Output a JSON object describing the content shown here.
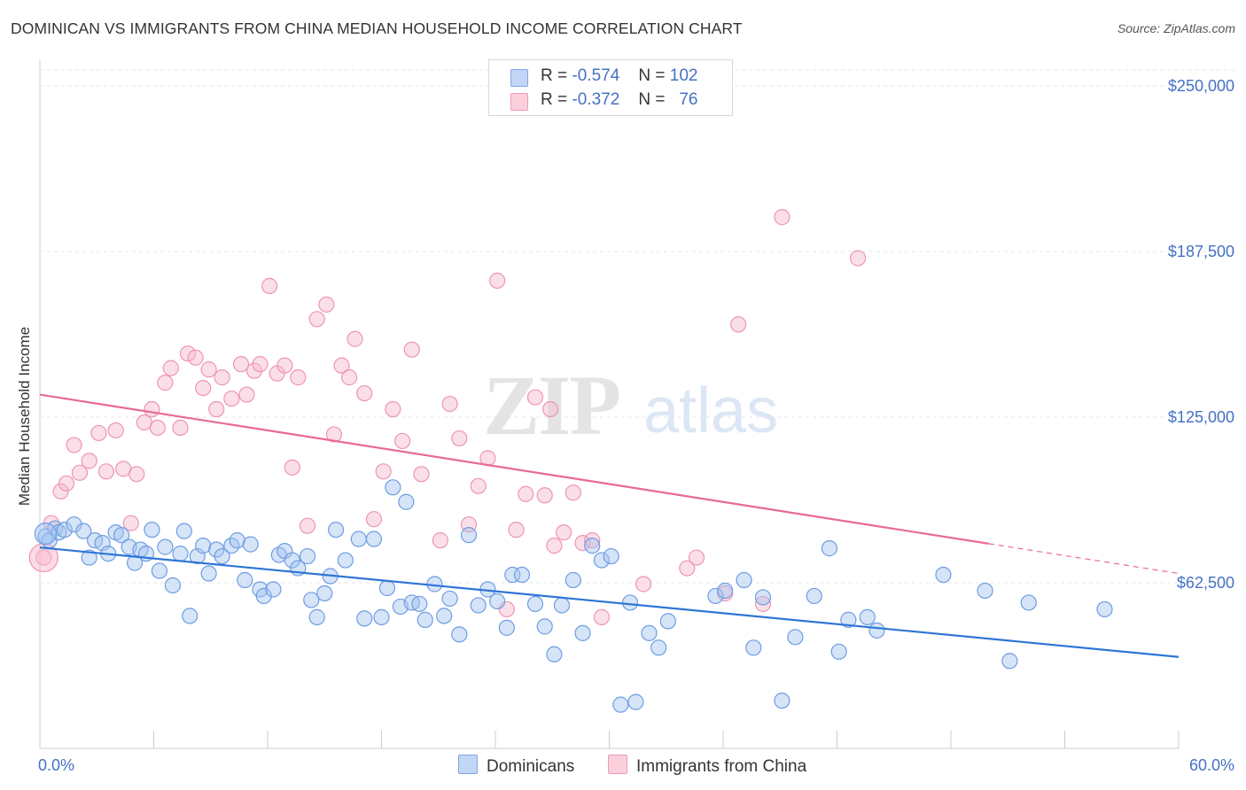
{
  "title": "DOMINICAN VS IMMIGRANTS FROM CHINA MEDIAN HOUSEHOLD INCOME CORRELATION CHART",
  "source": "Source: ZipAtlas.com",
  "watermark": {
    "zip": "ZIP",
    "atlas": "atlas"
  },
  "legend": {
    "r_label": "R =",
    "n_label": "N =",
    "rows": [
      {
        "r": "-0.574",
        "n": "102",
        "color": "#a9c4f0"
      },
      {
        "r": "-0.372",
        "n": "76",
        "color": "#f7b8cb"
      }
    ]
  },
  "bottom_legend": [
    "Dominicans",
    "Immigrants from China"
  ],
  "chart_data": {
    "type": "scatter",
    "title": "DOMINICAN VS IMMIGRANTS FROM CHINA MEDIAN HOUSEHOLD INCOME CORRELATION CHART",
    "xlabel": "",
    "ylabel": "Median Household Income",
    "xlim": [
      0,
      60
    ],
    "ylim": [
      0,
      250000
    ],
    "x_tick_labels": [
      "0.0%",
      "60.0%"
    ],
    "y_ticks": [
      62500,
      125000,
      187500,
      250000
    ],
    "y_tick_labels": [
      "$62,500",
      "$125,000",
      "$187,500",
      "$250,000"
    ],
    "grid": true,
    "legend_position": "top-center",
    "colors": {
      "dominicans": "#4a86e8",
      "china": "#f09ab5",
      "dom_line": "#2e75d6",
      "china_line": "#e8699a",
      "axis_text": "#4472c4"
    },
    "series": [
      {
        "name": "Dominicans",
        "trend": {
          "x0": 0,
          "y0": 75800,
          "x1": 60,
          "y1": 34500,
          "dash_from": 60
        },
        "points": [
          [
            0.3,
            80000
          ],
          [
            0.5,
            78500
          ],
          [
            0.8,
            83000
          ],
          [
            1.0,
            81500
          ],
          [
            1.3,
            82500
          ],
          [
            1.8,
            84500
          ],
          [
            2.3,
            82000
          ],
          [
            2.6,
            72000
          ],
          [
            2.9,
            78500
          ],
          [
            3.3,
            77500
          ],
          [
            3.6,
            73500
          ],
          [
            4.0,
            81500
          ],
          [
            4.3,
            80500
          ],
          [
            4.7,
            76000
          ],
          [
            5.0,
            70000
          ],
          [
            5.3,
            75000
          ],
          [
            5.6,
            73500
          ],
          [
            5.9,
            82500
          ],
          [
            6.3,
            67000
          ],
          [
            6.6,
            76000
          ],
          [
            7.0,
            61500
          ],
          [
            7.4,
            73500
          ],
          [
            7.6,
            82000
          ],
          [
            7.9,
            50000
          ],
          [
            8.3,
            72500
          ],
          [
            8.6,
            76500
          ],
          [
            8.9,
            66000
          ],
          [
            9.3,
            75000
          ],
          [
            9.6,
            72500
          ],
          [
            10.1,
            76500
          ],
          [
            10.4,
            78500
          ],
          [
            10.8,
            63500
          ],
          [
            11.1,
            77000
          ],
          [
            11.6,
            60000
          ],
          [
            11.8,
            57500
          ],
          [
            12.3,
            60000
          ],
          [
            12.6,
            73000
          ],
          [
            12.9,
            74500
          ],
          [
            13.3,
            71000
          ],
          [
            13.6,
            68000
          ],
          [
            14.1,
            72500
          ],
          [
            14.3,
            56000
          ],
          [
            14.6,
            49500
          ],
          [
            15.0,
            58500
          ],
          [
            15.3,
            65000
          ],
          [
            15.6,
            82500
          ],
          [
            16.1,
            71000
          ],
          [
            16.8,
            79000
          ],
          [
            17.1,
            49000
          ],
          [
            17.6,
            79000
          ],
          [
            18.0,
            49500
          ],
          [
            18.3,
            60500
          ],
          [
            18.6,
            98500
          ],
          [
            19.0,
            53500
          ],
          [
            19.3,
            93000
          ],
          [
            19.6,
            55000
          ],
          [
            20.0,
            54500
          ],
          [
            20.3,
            48500
          ],
          [
            20.8,
            62000
          ],
          [
            21.3,
            50000
          ],
          [
            21.6,
            56500
          ],
          [
            22.1,
            43000
          ],
          [
            22.6,
            80500
          ],
          [
            23.1,
            54000
          ],
          [
            23.6,
            60000
          ],
          [
            24.1,
            55500
          ],
          [
            24.6,
            45500
          ],
          [
            24.9,
            65500
          ],
          [
            25.4,
            65500
          ],
          [
            26.1,
            54500
          ],
          [
            26.6,
            46000
          ],
          [
            27.1,
            35500
          ],
          [
            27.5,
            54000
          ],
          [
            28.1,
            63500
          ],
          [
            28.6,
            43500
          ],
          [
            29.1,
            76500
          ],
          [
            29.6,
            71000
          ],
          [
            30.1,
            72500
          ],
          [
            30.6,
            16500
          ],
          [
            31.1,
            55000
          ],
          [
            32.1,
            43500
          ],
          [
            32.6,
            38000
          ],
          [
            33.1,
            48000
          ],
          [
            35.6,
            57500
          ],
          [
            36.1,
            59500
          ],
          [
            37.1,
            63500
          ],
          [
            37.6,
            38000
          ],
          [
            38.1,
            57000
          ],
          [
            39.8,
            42000
          ],
          [
            40.8,
            57500
          ],
          [
            41.6,
            75500
          ],
          [
            42.6,
            48500
          ],
          [
            44.1,
            44500
          ],
          [
            47.6,
            65500
          ],
          [
            49.8,
            59500
          ],
          [
            51.1,
            33000
          ],
          [
            52.1,
            55000
          ],
          [
            56.1,
            52500
          ],
          [
            31.4,
            17500
          ],
          [
            42.1,
            36500
          ],
          [
            43.6,
            49500
          ],
          [
            39.1,
            18000
          ]
        ]
      },
      {
        "name": "Immigrants from China",
        "trend": {
          "x0": 0,
          "y0": 133500,
          "x1": 60,
          "y1": 66000,
          "dash_from": 50
        },
        "points": [
          [
            0.2,
            72000
          ],
          [
            0.6,
            85000
          ],
          [
            1.1,
            97000
          ],
          [
            1.4,
            100000
          ],
          [
            1.8,
            114500
          ],
          [
            2.1,
            104000
          ],
          [
            2.6,
            108500
          ],
          [
            3.1,
            119000
          ],
          [
            3.5,
            104500
          ],
          [
            4.0,
            120000
          ],
          [
            4.4,
            105500
          ],
          [
            4.8,
            85000
          ],
          [
            5.1,
            103500
          ],
          [
            5.5,
            123000
          ],
          [
            5.9,
            128000
          ],
          [
            6.2,
            121000
          ],
          [
            6.6,
            138000
          ],
          [
            6.9,
            143500
          ],
          [
            7.4,
            121000
          ],
          [
            7.8,
            149000
          ],
          [
            8.2,
            147500
          ],
          [
            8.6,
            136000
          ],
          [
            8.9,
            143000
          ],
          [
            9.3,
            128000
          ],
          [
            9.6,
            140000
          ],
          [
            10.1,
            132000
          ],
          [
            10.6,
            145000
          ],
          [
            10.9,
            133500
          ],
          [
            11.3,
            142500
          ],
          [
            11.6,
            145000
          ],
          [
            12.1,
            174500
          ],
          [
            12.5,
            141500
          ],
          [
            12.9,
            144500
          ],
          [
            13.3,
            106000
          ],
          [
            13.6,
            140000
          ],
          [
            14.1,
            84000
          ],
          [
            14.6,
            162000
          ],
          [
            15.1,
            167500
          ],
          [
            15.5,
            118500
          ],
          [
            15.9,
            144500
          ],
          [
            16.3,
            140000
          ],
          [
            16.6,
            154500
          ],
          [
            17.1,
            134000
          ],
          [
            17.6,
            86500
          ],
          [
            18.1,
            104500
          ],
          [
            18.6,
            128000
          ],
          [
            19.1,
            116000
          ],
          [
            19.6,
            150500
          ],
          [
            20.1,
            103500
          ],
          [
            21.1,
            78500
          ],
          [
            21.6,
            130000
          ],
          [
            22.1,
            117000
          ],
          [
            22.6,
            84500
          ],
          [
            23.1,
            99000
          ],
          [
            23.6,
            109500
          ],
          [
            24.1,
            176500
          ],
          [
            24.6,
            52500
          ],
          [
            25.1,
            82500
          ],
          [
            25.6,
            96000
          ],
          [
            26.1,
            132500
          ],
          [
            26.6,
            95500
          ],
          [
            27.1,
            76500
          ],
          [
            27.6,
            81500
          ],
          [
            28.1,
            96500
          ],
          [
            28.6,
            77500
          ],
          [
            29.1,
            78500
          ],
          [
            29.6,
            49500
          ],
          [
            31.8,
            62000
          ],
          [
            34.1,
            68000
          ],
          [
            34.6,
            72000
          ],
          [
            36.1,
            58500
          ],
          [
            38.1,
            54500
          ],
          [
            39.1,
            200500
          ],
          [
            36.8,
            160000
          ],
          [
            43.1,
            185000
          ],
          [
            26.9,
            128000
          ]
        ]
      }
    ]
  }
}
